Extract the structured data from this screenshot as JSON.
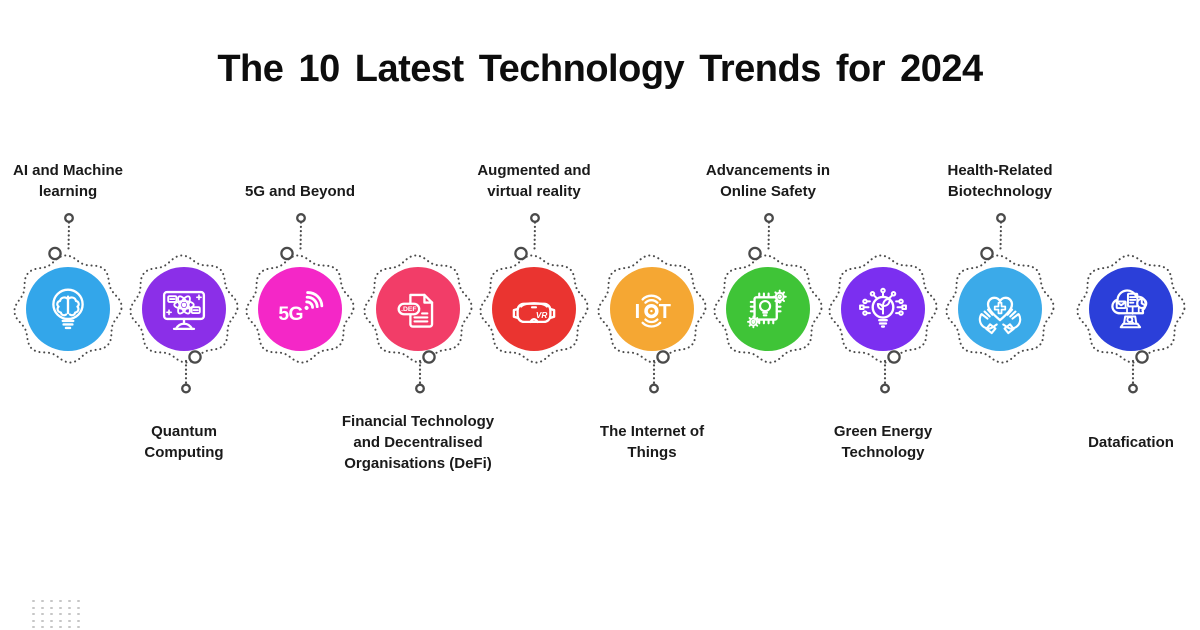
{
  "title": "The 10 Latest Technology Trends for 2024",
  "colors": {
    "background": "#FFFFFF",
    "title_text": "#0D0D0D",
    "label_text": "#1A1A1A",
    "dotted_outline": "#4A4A4A",
    "corner_dots": "#C6C6C6"
  },
  "items": [
    {
      "id": "ai-machine-learning",
      "label": "AI and Machine learning",
      "label_position": "top",
      "circle_color": "#33A6EA",
      "icon": "brain-bulb-icon"
    },
    {
      "id": "quantum-computing",
      "label": "Quantum Computing",
      "label_position": "bottom",
      "circle_color": "#8B2FE8",
      "icon": "quantum-computer-icon"
    },
    {
      "id": "5g-and-beyond",
      "label": "5G and Beyond",
      "label_position": "top",
      "circle_color": "#F427C7",
      "icon": "5g-signal-icon",
      "icon_text": "5G"
    },
    {
      "id": "fintech-defi",
      "label": "Financial Technology and Decentralised Organisations (DeFi)",
      "label_position": "bottom",
      "circle_color": "#F23D68",
      "icon": "defi-document-icon",
      "icon_text": ".DEF"
    },
    {
      "id": "ar-vr",
      "label": "Augmented and virtual reality",
      "label_position": "top",
      "circle_color": "#EA3430",
      "icon": "vr-headset-icon",
      "icon_text": "VR"
    },
    {
      "id": "internet-of-things",
      "label": "The Internet of Things",
      "label_position": "bottom",
      "circle_color": "#F5A733",
      "icon": "iot-icon",
      "icon_text": "IOT"
    },
    {
      "id": "online-safety",
      "label": "Advancements in Online Safety",
      "label_position": "top",
      "circle_color": "#3FC437",
      "icon": "security-chip-icon"
    },
    {
      "id": "green-energy",
      "label": "Green Energy Technology",
      "label_position": "bottom",
      "circle_color": "#7B2FF0",
      "icon": "eco-bulb-icon"
    },
    {
      "id": "health-biotech",
      "label": "Health-Related Biotechnology",
      "label_position": "top",
      "circle_color": "#3BAAE9",
      "icon": "hands-heart-icon"
    },
    {
      "id": "datafication",
      "label": "Datafication",
      "label_position": "bottom",
      "circle_color": "#2B3FD9",
      "icon": "data-cloud-icon"
    }
  ],
  "decoration": {
    "dot_grid_rows": 5,
    "dot_grid_cols": 6
  }
}
